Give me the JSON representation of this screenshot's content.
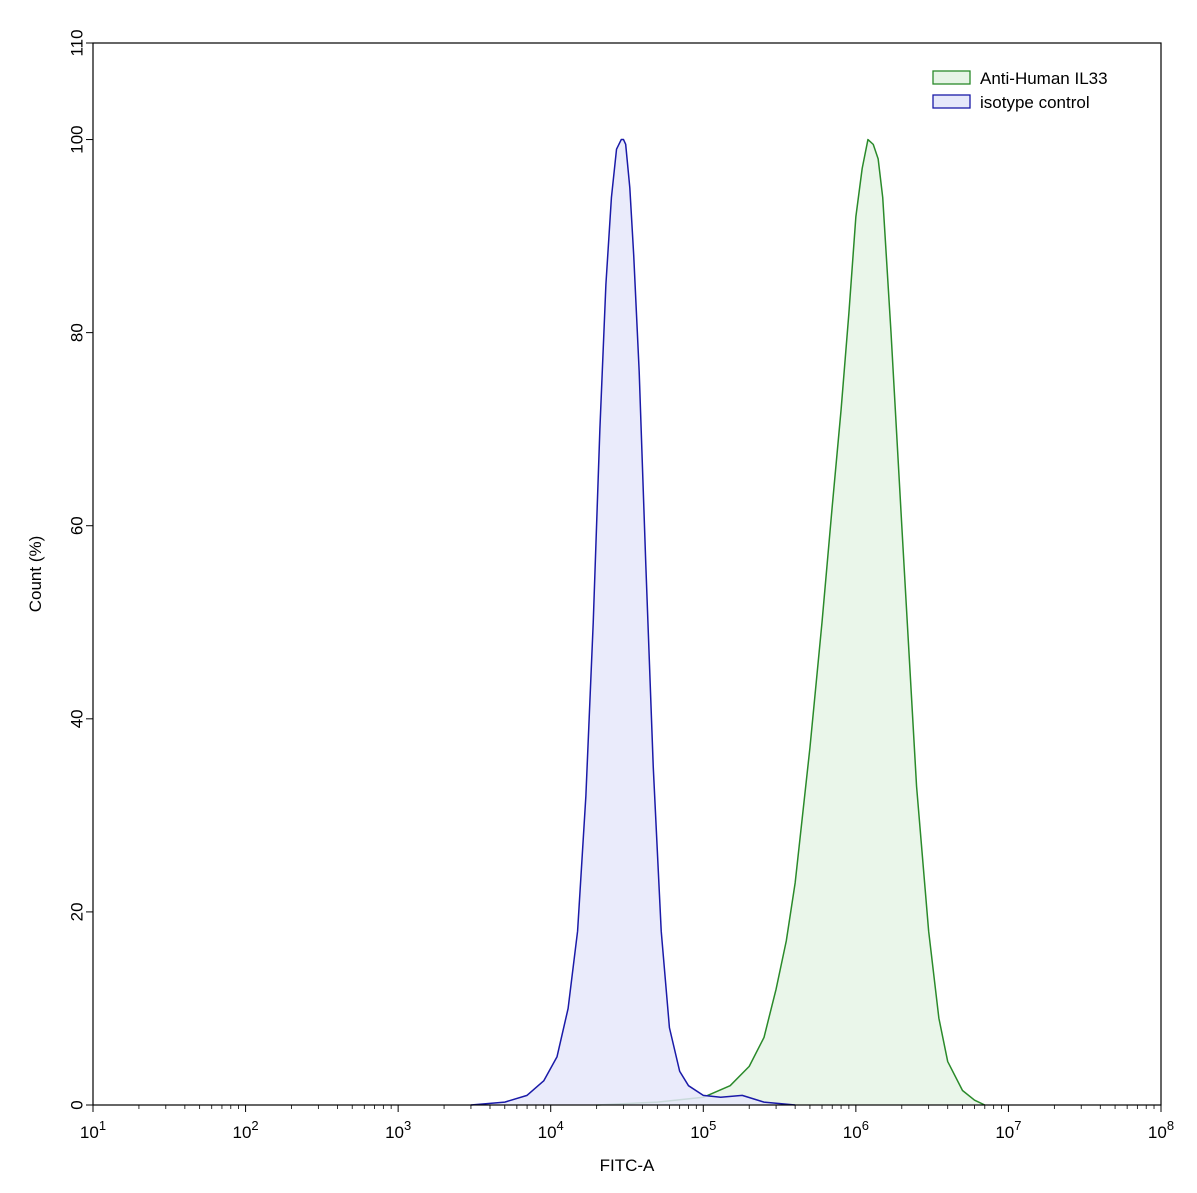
{
  "chart_data": {
    "type": "area",
    "xlabel": "FITC-A",
    "ylabel": "Count  (%)",
    "x_scale": "log",
    "xlim": [
      10,
      100000000
    ],
    "ylim": [
      0,
      110
    ],
    "yticks": [
      "0",
      "20",
      "40",
      "60",
      "80",
      "100",
      "110"
    ],
    "ytick_values": [
      0,
      20,
      40,
      60,
      80,
      100,
      110
    ],
    "xticks": [
      {
        "value": 10,
        "base": "10",
        "exp": "1"
      },
      {
        "value": 100,
        "base": "10",
        "exp": "2"
      },
      {
        "value": 1000,
        "base": "10",
        "exp": "3"
      },
      {
        "value": 10000,
        "base": "10",
        "exp": "4"
      },
      {
        "value": 100000,
        "base": "10",
        "exp": "5"
      },
      {
        "value": 1000000,
        "base": "10",
        "exp": "6"
      },
      {
        "value": 10000000,
        "base": "10",
        "exp": "7"
      },
      {
        "value": 100000000,
        "base": "10",
        "exp": "8"
      }
    ],
    "legend_position": "top-right",
    "grid": false,
    "series": [
      {
        "name": "Anti-Human IL33",
        "line_color": "#2a8a2a",
        "fill_color": "#e6f4e6",
        "x": [
          20000,
          50000,
          100000,
          150000,
          200000,
          250000,
          300000,
          350000,
          400000,
          500000,
          600000,
          700000,
          800000,
          900000,
          1000000,
          1100000,
          1200000,
          1300000,
          1400000,
          1500000,
          1700000,
          2000000,
          2500000,
          3000000,
          3500000,
          4000000,
          5000000,
          6000000,
          7000000
        ],
        "y": [
          0,
          0.3,
          0.8,
          2,
          4,
          7,
          12,
          17,
          23,
          37,
          50,
          62,
          72,
          82,
          92,
          97,
          100,
          99.5,
          98,
          94,
          80,
          60,
          33,
          18,
          9,
          4.5,
          1.5,
          0.5,
          0
        ]
      },
      {
        "name": "isotype control",
        "line_color": "#1a1aa8",
        "fill_color": "#e6e8fa",
        "x": [
          3000,
          5000,
          7000,
          9000,
          11000,
          13000,
          15000,
          17000,
          19000,
          21000,
          23000,
          25000,
          27000,
          29000,
          30000,
          31000,
          33000,
          35000,
          38000,
          42000,
          47000,
          53000,
          60000,
          70000,
          80000,
          100000,
          130000,
          180000,
          250000,
          400000
        ],
        "y": [
          0,
          0.3,
          1,
          2.5,
          5,
          10,
          18,
          32,
          50,
          70,
          85,
          94,
          99,
          100,
          100,
          99.5,
          95,
          88,
          76,
          56,
          35,
          18,
          8,
          3.5,
          2,
          1,
          0.8,
          1,
          0.3,
          0
        ]
      }
    ]
  }
}
